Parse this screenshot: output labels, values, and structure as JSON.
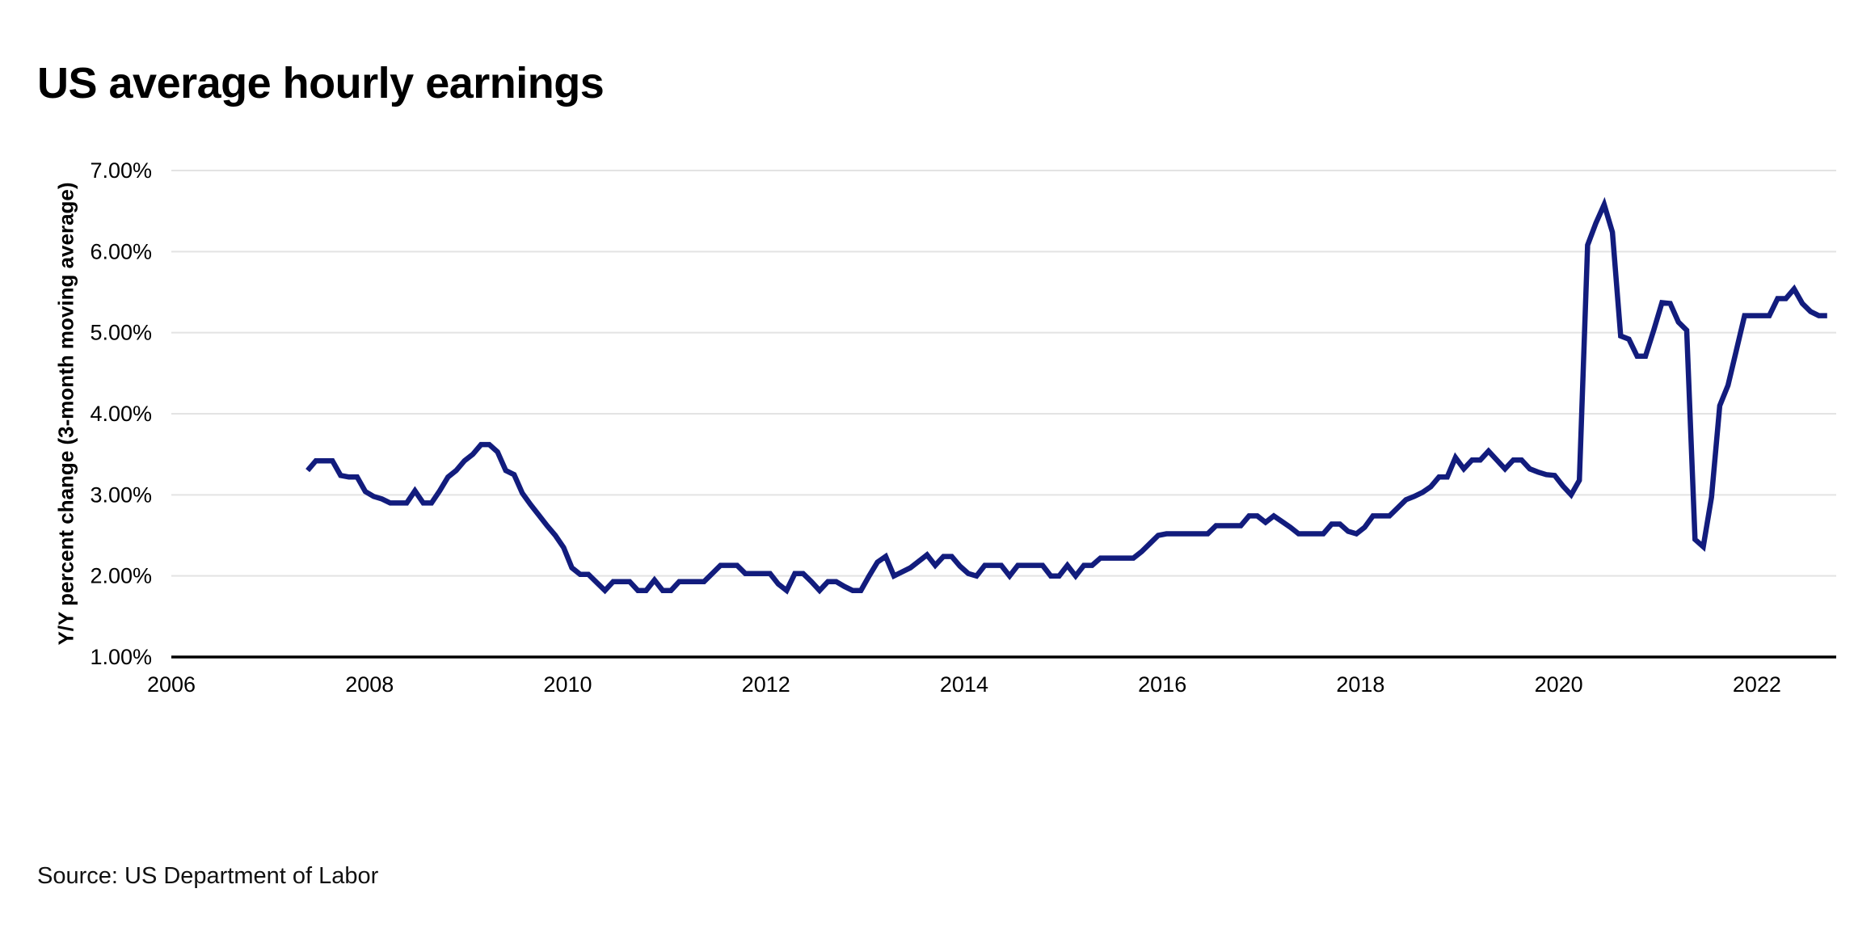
{
  "header": {
    "title": "US average hourly earnings"
  },
  "footer": {
    "source": "Source: US Department of Labor"
  },
  "chart_data": {
    "type": "line",
    "title": "US average hourly earnings",
    "ylabel": "Y/Y percent change (3-month moving average)",
    "xlabel": "",
    "unit": "percent",
    "ylim": [
      1,
      7
    ],
    "xlim": [
      2006,
      2022.8
    ],
    "grid": "horizontal-only",
    "legend": "none",
    "y_ticks": [
      {
        "value": 1,
        "label": "1.00%"
      },
      {
        "value": 2,
        "label": "2.00%"
      },
      {
        "value": 3,
        "label": "3.00%"
      },
      {
        "value": 4,
        "label": "4.00%"
      },
      {
        "value": 5,
        "label": "5.00%"
      },
      {
        "value": 6,
        "label": "6.00%"
      },
      {
        "value": 7,
        "label": "7.00%"
      }
    ],
    "x_ticks": [
      {
        "value": 2006,
        "label": "2006"
      },
      {
        "value": 2008,
        "label": "2008"
      },
      {
        "value": 2010,
        "label": "2010"
      },
      {
        "value": 2012,
        "label": "2012"
      },
      {
        "value": 2014,
        "label": "2014"
      },
      {
        "value": 2016,
        "label": "2016"
      },
      {
        "value": 2018,
        "label": "2018"
      },
      {
        "value": 2020,
        "label": "2020"
      },
      {
        "value": 2022,
        "label": "2022"
      }
    ],
    "colors": {
      "line": "#121c7d",
      "grid": "#e3e3e3",
      "axis": "#000000",
      "text": "#000000"
    },
    "series": [
      {
        "name": "US average hourly earnings, Y/Y percent change (3-month moving average)",
        "start_year": 2007,
        "start_month": 5,
        "frequency": "monthly",
        "values": [
          3.3,
          3.42,
          3.42,
          3.42,
          3.24,
          3.22,
          3.22,
          3.04,
          2.98,
          2.95,
          2.9,
          2.9,
          2.9,
          3.05,
          2.9,
          2.9,
          3.05,
          3.22,
          3.3,
          3.42,
          3.5,
          3.62,
          3.62,
          3.53,
          3.3,
          3.25,
          3.02,
          2.88,
          2.75,
          2.62,
          2.5,
          2.35,
          2.1,
          2.02,
          2.02,
          1.92,
          1.82,
          1.93,
          1.93,
          1.93,
          1.82,
          1.82,
          1.95,
          1.82,
          1.82,
          1.93,
          1.93,
          1.93,
          1.93,
          2.03,
          2.13,
          2.13,
          2.13,
          2.03,
          2.03,
          2.03,
          2.03,
          1.9,
          1.82,
          2.03,
          2.03,
          1.93,
          1.82,
          1.93,
          1.93,
          1.87,
          1.82,
          1.82,
          2.0,
          2.17,
          2.24,
          2.0,
          2.05,
          2.1,
          2.18,
          2.26,
          2.13,
          2.24,
          2.24,
          2.12,
          2.03,
          2.0,
          2.13,
          2.13,
          2.13,
          2.0,
          2.13,
          2.13,
          2.13,
          2.13,
          2.0,
          2.0,
          2.13,
          2.0,
          2.13,
          2.13,
          2.22,
          2.22,
          2.22,
          2.22,
          2.22,
          2.3,
          2.4,
          2.5,
          2.52,
          2.52,
          2.52,
          2.52,
          2.52,
          2.52,
          2.62,
          2.62,
          2.62,
          2.62,
          2.74,
          2.74,
          2.66,
          2.74,
          2.67,
          2.6,
          2.52,
          2.52,
          2.52,
          2.52,
          2.64,
          2.64,
          2.55,
          2.52,
          2.6,
          2.74,
          2.74,
          2.74,
          2.84,
          2.94,
          2.98,
          3.03,
          3.1,
          3.22,
          3.22,
          3.46,
          3.32,
          3.43,
          3.43,
          3.54,
          3.43,
          3.32,
          3.43,
          3.43,
          3.32,
          3.28,
          3.25,
          3.24,
          3.11,
          3.0,
          3.18,
          6.08,
          6.35,
          6.58,
          6.24,
          4.96,
          4.92,
          4.71,
          4.71,
          5.03,
          5.37,
          5.36,
          5.13,
          5.03,
          2.45,
          2.36,
          2.97,
          4.1,
          4.35,
          4.78,
          5.21,
          5.21,
          5.21,
          5.21,
          5.42,
          5.42,
          5.54,
          5.36,
          5.26,
          5.21,
          5.21
        ]
      }
    ]
  }
}
